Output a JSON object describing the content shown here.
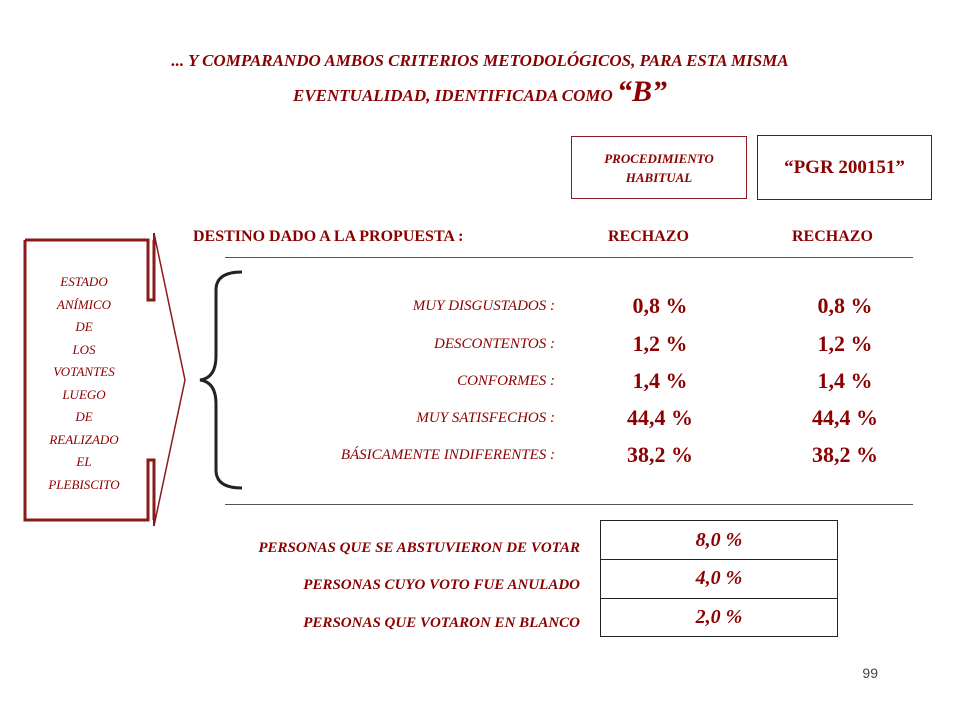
{
  "title": {
    "line1": "... Y COMPARANDO AMBOS CRITERIOS METODOLÓGICOS, PARA ESTA MISMA",
    "line2": "EVENTUALIDAD, IDENTIFICADA COMO ",
    "highlight": "“B”"
  },
  "columns": {
    "proc_label": "PROCEDIMIENTO HABITUAL",
    "pgr_label": "“PGR 200151”"
  },
  "destino": {
    "label": "DESTINO DADO A LA PROPUESTA :",
    "col1": "RECHAZO",
    "col2": "RECHAZO"
  },
  "side_label": [
    "ESTADO",
    "ANÍMICO",
    "DE",
    "LOS",
    "VOTANTES",
    "LUEGO",
    "DE",
    "REALIZADO",
    "EL",
    "PLEBISCITO"
  ],
  "rows": [
    {
      "label": "MUY DISGUSTADOS :",
      "col1": "0,8 %",
      "col2": "0,8 %"
    },
    {
      "label": "DESCONTENTOS :",
      "col1": "1,2 %",
      "col2": "1,2 %"
    },
    {
      "label": "CONFORMES :",
      "col1": "1,4 %",
      "col2": "1,4 %"
    },
    {
      "label": "MUY SATISFECHOS :",
      "col1": "44,4 %",
      "col2": "44,4 %"
    },
    {
      "label": "BÁSICAMENTE INDIFERENTES :",
      "col1": "38,2 %",
      "col2": "38,2 %"
    }
  ],
  "other": [
    {
      "label": "PERSONAS QUE SE ABSTUVIERON DE VOTAR",
      "value": "8,0 %"
    },
    {
      "label": "PERSONAS CUYO VOTO FUE ANULADO",
      "value": "4,0 %"
    },
    {
      "label": "PERSONAS QUE VOTARON EN BLANCO",
      "value": "2,0 %"
    }
  ],
  "page_number": "99",
  "colors": {
    "primary": "#8b0000",
    "pgr_border": "#1f1fa0"
  }
}
